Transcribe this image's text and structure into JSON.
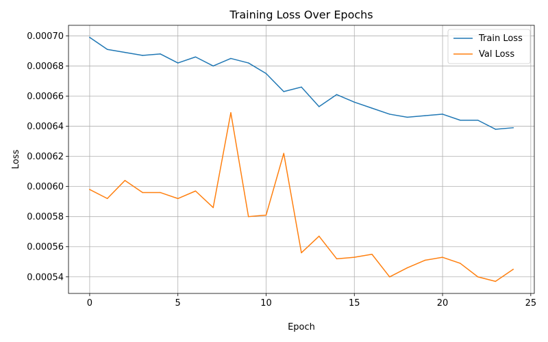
{
  "chart_data": {
    "type": "line",
    "title": "Training Loss Over Epochs",
    "xlabel": "Epoch",
    "ylabel": "Loss",
    "xlim": [
      -1.2,
      25.2
    ],
    "ylim": [
      0.000529,
      0.000707
    ],
    "xticks": [
      0,
      5,
      10,
      15,
      20,
      25
    ],
    "yticks": [
      0.00054,
      0.00056,
      0.00058,
      0.0006,
      0.00062,
      0.00064,
      0.00066,
      0.00068,
      0.0007
    ],
    "xtick_labels": [
      "0",
      "5",
      "10",
      "15",
      "20",
      "25"
    ],
    "ytick_labels": [
      "0.00054",
      "0.00056",
      "0.00058",
      "0.00060",
      "0.00062",
      "0.00064",
      "0.00066",
      "0.00068",
      "0.00070"
    ],
    "grid": true,
    "legend_position": "top-right",
    "x": [
      0,
      1,
      2,
      3,
      4,
      5,
      6,
      7,
      8,
      9,
      10,
      11,
      12,
      13,
      14,
      15,
      16,
      17,
      18,
      19,
      20,
      21,
      22,
      23,
      24
    ],
    "series": [
      {
        "name": "Train Loss",
        "color": "#1f77b4",
        "values": [
          0.000699,
          0.000691,
          0.000689,
          0.000687,
          0.000688,
          0.000682,
          0.000686,
          0.00068,
          0.000685,
          0.000682,
          0.000675,
          0.000663,
          0.000666,
          0.000653,
          0.000661,
          0.000656,
          0.000652,
          0.000648,
          0.000646,
          0.000647,
          0.000648,
          0.000644,
          0.000644,
          0.000638,
          0.000639
        ]
      },
      {
        "name": "Val Loss",
        "color": "#ff7f0e",
        "values": [
          0.000598,
          0.000592,
          0.000604,
          0.000596,
          0.000596,
          0.000592,
          0.000597,
          0.000586,
          0.000649,
          0.00058,
          0.000581,
          0.000622,
          0.000556,
          0.000567,
          0.000552,
          0.000553,
          0.000555,
          0.00054,
          0.000546,
          0.000551,
          0.000553,
          0.000549,
          0.00054,
          0.000537,
          0.000545
        ]
      }
    ]
  }
}
